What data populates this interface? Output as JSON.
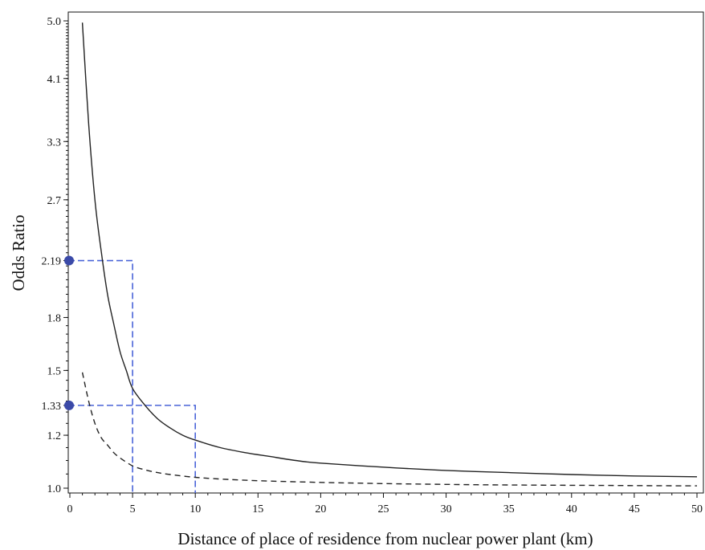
{
  "chart_data": {
    "type": "line",
    "title": "",
    "xlabel": "Distance of place of residence from nuclear power plant (km)",
    "ylabel": "Odds Ratio",
    "scale": {
      "y": "log"
    },
    "xlim": [
      -0.5,
      50
    ],
    "ylim": [
      0.983,
      5.03
    ],
    "grid": false,
    "x_ticks": [
      {
        "value": 0,
        "label": "0"
      },
      {
        "value": 5,
        "label": "5"
      },
      {
        "value": 10,
        "label": "10"
      },
      {
        "value": 15,
        "label": "15"
      },
      {
        "value": 20,
        "label": "20"
      },
      {
        "value": 25,
        "label": "25"
      },
      {
        "value": 30,
        "label": "30"
      },
      {
        "value": 35,
        "label": "35"
      },
      {
        "value": 40,
        "label": "40"
      },
      {
        "value": 45,
        "label": "45"
      },
      {
        "value": 50,
        "label": "50"
      }
    ],
    "y_ticks": [
      {
        "value": 1.0,
        "label": "1.0"
      },
      {
        "value": 1.2,
        "label": "1.2"
      },
      {
        "value": 1.33,
        "label": "1.33"
      },
      {
        "value": 1.5,
        "label": "1.5"
      },
      {
        "value": 1.8,
        "label": "1.8"
      },
      {
        "value": 2.19,
        "label": "2.19"
      },
      {
        "value": 2.7,
        "label": "2.7"
      },
      {
        "value": 3.3,
        "label": "3.3"
      },
      {
        "value": 4.1,
        "label": "4.1"
      },
      {
        "value": 5.0,
        "label": "5.0"
      }
    ],
    "series": [
      {
        "style": "solid",
        "color": "#222222",
        "x": [
          1,
          1.5,
          2,
          2.5,
          3,
          3.5,
          4,
          4.5,
          5,
          6,
          7,
          8,
          9,
          10,
          12,
          14,
          16,
          18,
          20,
          25,
          30,
          35,
          40,
          45,
          50
        ],
        "y": [
          4.97,
          3.51,
          2.7,
          2.26,
          1.95,
          1.76,
          1.6,
          1.5,
          1.41,
          1.33,
          1.27,
          1.23,
          1.2,
          1.18,
          1.15,
          1.13,
          1.115,
          1.1,
          1.09,
          1.075,
          1.063,
          1.055,
          1.048,
          1.043,
          1.04
        ]
      },
      {
        "style": "dashed",
        "color": "#222222",
        "x": [
          1,
          1.5,
          2,
          2.5,
          3,
          3.5,
          4,
          5,
          6,
          7,
          8,
          10,
          12,
          15,
          20,
          25,
          30,
          35,
          40,
          45,
          50
        ],
        "y": [
          1.49,
          1.35,
          1.25,
          1.19,
          1.16,
          1.13,
          1.11,
          1.08,
          1.065,
          1.055,
          1.048,
          1.038,
          1.032,
          1.026,
          1.02,
          1.016,
          1.013,
          1.011,
          1.01,
          1.009,
          1.008
        ]
      }
    ],
    "reference_lines": [
      {
        "x": 5,
        "y": 2.19,
        "color": "#4a64d8"
      },
      {
        "x": 10,
        "y": 1.33,
        "color": "#4a64d8"
      }
    ],
    "markers": [
      {
        "y": 2.19,
        "color": "#3b4aa8"
      },
      {
        "y": 1.33,
        "color": "#3b4aa8"
      }
    ]
  }
}
